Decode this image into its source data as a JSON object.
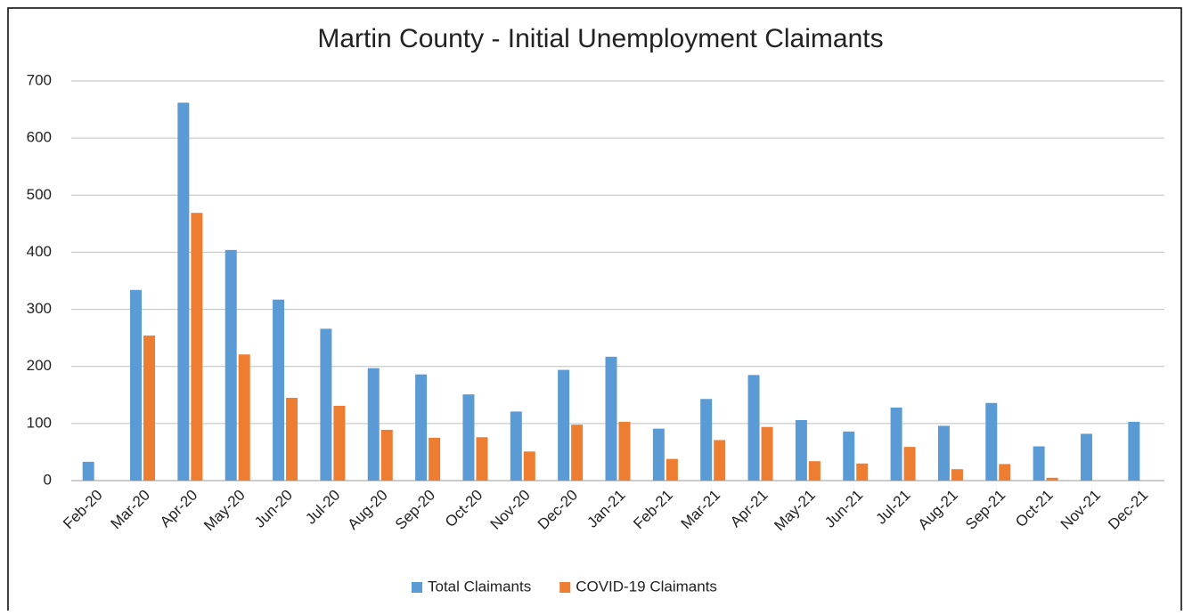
{
  "chart_data": {
    "type": "bar",
    "title": "Martin County - Initial Unemployment Claimants",
    "categories": [
      "Feb-20",
      "Mar-20",
      "Apr-20",
      "May-20",
      "Jun-20",
      "Jul-20",
      "Aug-20",
      "Sep-20",
      "Oct-20",
      "Nov-20",
      "Dec-20",
      "Jan-21",
      "Feb-21",
      "Mar-21",
      "Apr-21",
      "May-21",
      "Jun-21",
      "Jul-21",
      "Aug-21",
      "Sep-21",
      "Oct-21",
      "Nov-21",
      "Dec-21"
    ],
    "series": [
      {
        "name": "Total Claimants",
        "color": "#5b9bd5",
        "values": [
          33,
          334,
          662,
          404,
          317,
          266,
          197,
          186,
          151,
          121,
          194,
          217,
          91,
          143,
          185,
          106,
          86,
          128,
          96,
          136,
          60,
          82,
          103
        ]
      },
      {
        "name": "COVID-19 Claimants",
        "color": "#ed7d31",
        "values": [
          0,
          254,
          469,
          221,
          145,
          131,
          89,
          75,
          76,
          51,
          98,
          103,
          38,
          71,
          94,
          34,
          30,
          59,
          20,
          29,
          5,
          0,
          0
        ]
      }
    ],
    "ylim": [
      0,
      700
    ],
    "yticks": [
      0,
      100,
      200,
      300,
      400,
      500,
      600,
      700
    ],
    "grid": true,
    "legend": "bottom"
  }
}
